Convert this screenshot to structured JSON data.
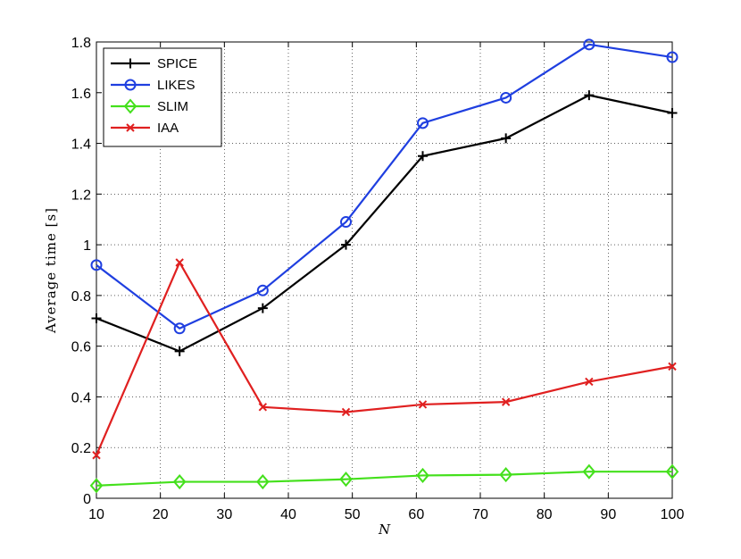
{
  "chart_data": {
    "type": "line",
    "xlabel": "N",
    "ylabel": "Average time [s]",
    "xlim": [
      10,
      100
    ],
    "ylim": [
      0,
      1.8
    ],
    "xticks": [
      10,
      20,
      30,
      40,
      50,
      60,
      70,
      80,
      90,
      100
    ],
    "yticks": [
      0,
      0.2,
      0.4,
      0.6,
      0.8,
      1,
      1.2,
      1.4,
      1.6,
      1.8
    ],
    "xtick_labels": [
      "10",
      "20",
      "30",
      "40",
      "50",
      "60",
      "70",
      "80",
      "90",
      "100"
    ],
    "ytick_labels": [
      "0",
      "0.2",
      "0.4",
      "0.6",
      "0.8",
      "1",
      "1.2",
      "1.4",
      "1.6",
      "1.8"
    ],
    "grid": true,
    "legend_position": "top-left",
    "x": [
      10,
      23,
      36,
      49,
      61,
      74,
      87,
      100
    ],
    "series": [
      {
        "name": "SPICE",
        "color": "#000000",
        "marker": "plus",
        "values": [
          0.71,
          0.58,
          0.75,
          1.0,
          1.35,
          1.42,
          1.59,
          1.52
        ]
      },
      {
        "name": "LIKES",
        "color": "#1f3fe0",
        "marker": "circle",
        "values": [
          0.92,
          0.67,
          0.82,
          1.09,
          1.48,
          1.58,
          1.79,
          1.74
        ]
      },
      {
        "name": "SLIM",
        "color": "#44e01c",
        "marker": "diamond",
        "values": [
          0.05,
          0.065,
          0.065,
          0.075,
          0.09,
          0.093,
          0.105,
          0.105
        ]
      },
      {
        "name": "IAA",
        "color": "#e02020",
        "marker": "x",
        "values": [
          0.17,
          0.93,
          0.36,
          0.34,
          0.37,
          0.38,
          0.46,
          0.52
        ]
      }
    ]
  }
}
